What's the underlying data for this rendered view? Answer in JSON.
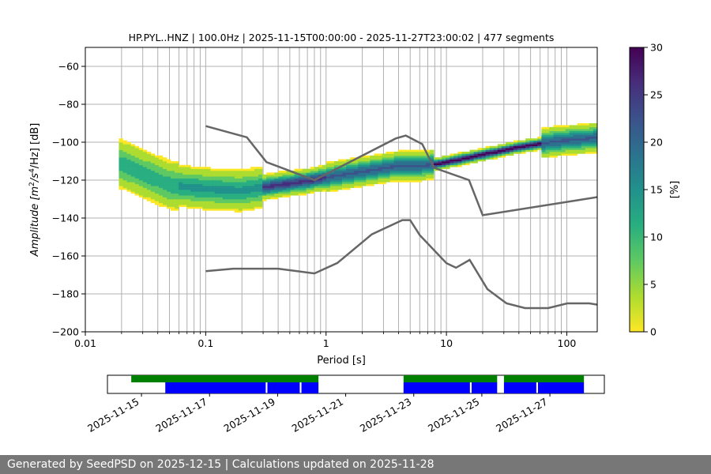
{
  "chart_data": [
    {
      "type": "heatmap",
      "title": "HP.PYL..HNZ | 100.0Hz | 2025-11-15T00:00:00 - 2025-11-27T23:00:02 | 477 segments",
      "xlabel": "Period [s]",
      "ylabel_main": "Amplitude [m",
      "ylabel_sup1": "2",
      "ylabel_mid": "/s",
      "ylabel_sup2": "4",
      "ylabel_end": "/Hz] [dB]",
      "x_scale": "log",
      "xlim": [
        0.01,
        179
      ],
      "ylim": [
        -200,
        -50
      ],
      "x_ticks": [
        0.01,
        0.1,
        1,
        10,
        100
      ],
      "x_tick_labels": [
        "0.01",
        "0.1",
        "1",
        "10",
        "100"
      ],
      "y_ticks": [
        -200,
        -180,
        -160,
        -140,
        -120,
        -100,
        -80,
        -60
      ],
      "y_tick_labels": [
        "−200",
        "−180",
        "−160",
        "−140",
        "−120",
        "−100",
        "−80",
        "−60"
      ],
      "grid": "vertical lines at periods",
      "colorbar": {
        "label": "[%]",
        "range": [
          0,
          30
        ],
        "ticks": [
          0,
          5,
          10,
          15,
          20,
          25,
          30
        ],
        "tick_labels": [
          "0",
          "5",
          "10",
          "15",
          "20",
          "25",
          "30"
        ],
        "colormap": "viridis_r"
      },
      "mode_curve": {
        "x": [
          0.02,
          0.05,
          0.1,
          0.2,
          0.4,
          0.7,
          1,
          2,
          4,
          6,
          8,
          10,
          20,
          40,
          80,
          179
        ],
        "y": [
          -112,
          -123,
          -125,
          -126,
          -123,
          -121,
          -119,
          -116,
          -113,
          -113,
          -112,
          -111,
          -107,
          -103,
          -100,
          -98
        ]
      },
      "nhnm": {
        "x": [
          0.1,
          0.22,
          0.32,
          0.8,
          3.8,
          4.6,
          6.3,
          7.9,
          15.4,
          20,
          354.8
        ],
        "y": [
          -91.5,
          -97.4,
          -110.5,
          -120,
          -98,
          -96.5,
          -101,
          -113.5,
          -120,
          -138.5,
          -126
        ]
      },
      "nlnm": {
        "x": [
          0.1,
          0.17,
          0.4,
          0.8,
          1.24,
          2.4,
          4.3,
          5,
          6,
          10,
          12,
          15.6,
          21.9,
          31.6,
          45,
          70,
          101,
          154,
          179
        ],
        "y": [
          -168,
          -166.7,
          -166.7,
          -169.2,
          -163.7,
          -148.6,
          -141.1,
          -141.1,
          -149,
          -163.8,
          -166.2,
          -162.1,
          -177.5,
          -185,
          -187.5,
          -187.5,
          -185,
          -185,
          -185.7
        ]
      }
    },
    {
      "type": "timeline",
      "date_ticks": [
        "2025-11-15",
        "2025-11-17",
        "2025-11-19",
        "2025-11-21",
        "2025-11-23",
        "2025-11-25",
        "2025-11-27"
      ],
      "date_range": [
        "2025-11-14",
        "2025-11-28.6"
      ],
      "data_availability": [
        [
          "2025-11-14.7",
          "2025-11-20.2"
        ],
        [
          "2025-11-22.7",
          "2025-11-25.45"
        ],
        [
          "2025-11-25.65",
          "2025-11-28.0"
        ]
      ],
      "psd_segments": [
        [
          "2025-11-15.7",
          "2025-11-18.65"
        ],
        [
          "2025-11-18.7",
          "2025-11-19.65"
        ],
        [
          "2025-11-19.7",
          "2025-11-20.2"
        ],
        [
          "2025-11-22.7",
          "2025-11-24.65"
        ],
        [
          "2025-11-24.7",
          "2025-11-25.45"
        ],
        [
          "2025-11-25.65",
          "2025-11-26.6"
        ],
        [
          "2025-11-26.65",
          "2025-11-28.0"
        ]
      ],
      "colors": {
        "availability": "#008000",
        "segments": "#0000ff"
      }
    }
  ],
  "footer": {
    "text": "Generated by SeedPSD on 2025-12-15 | Calculations updated on 2025-11-28"
  }
}
